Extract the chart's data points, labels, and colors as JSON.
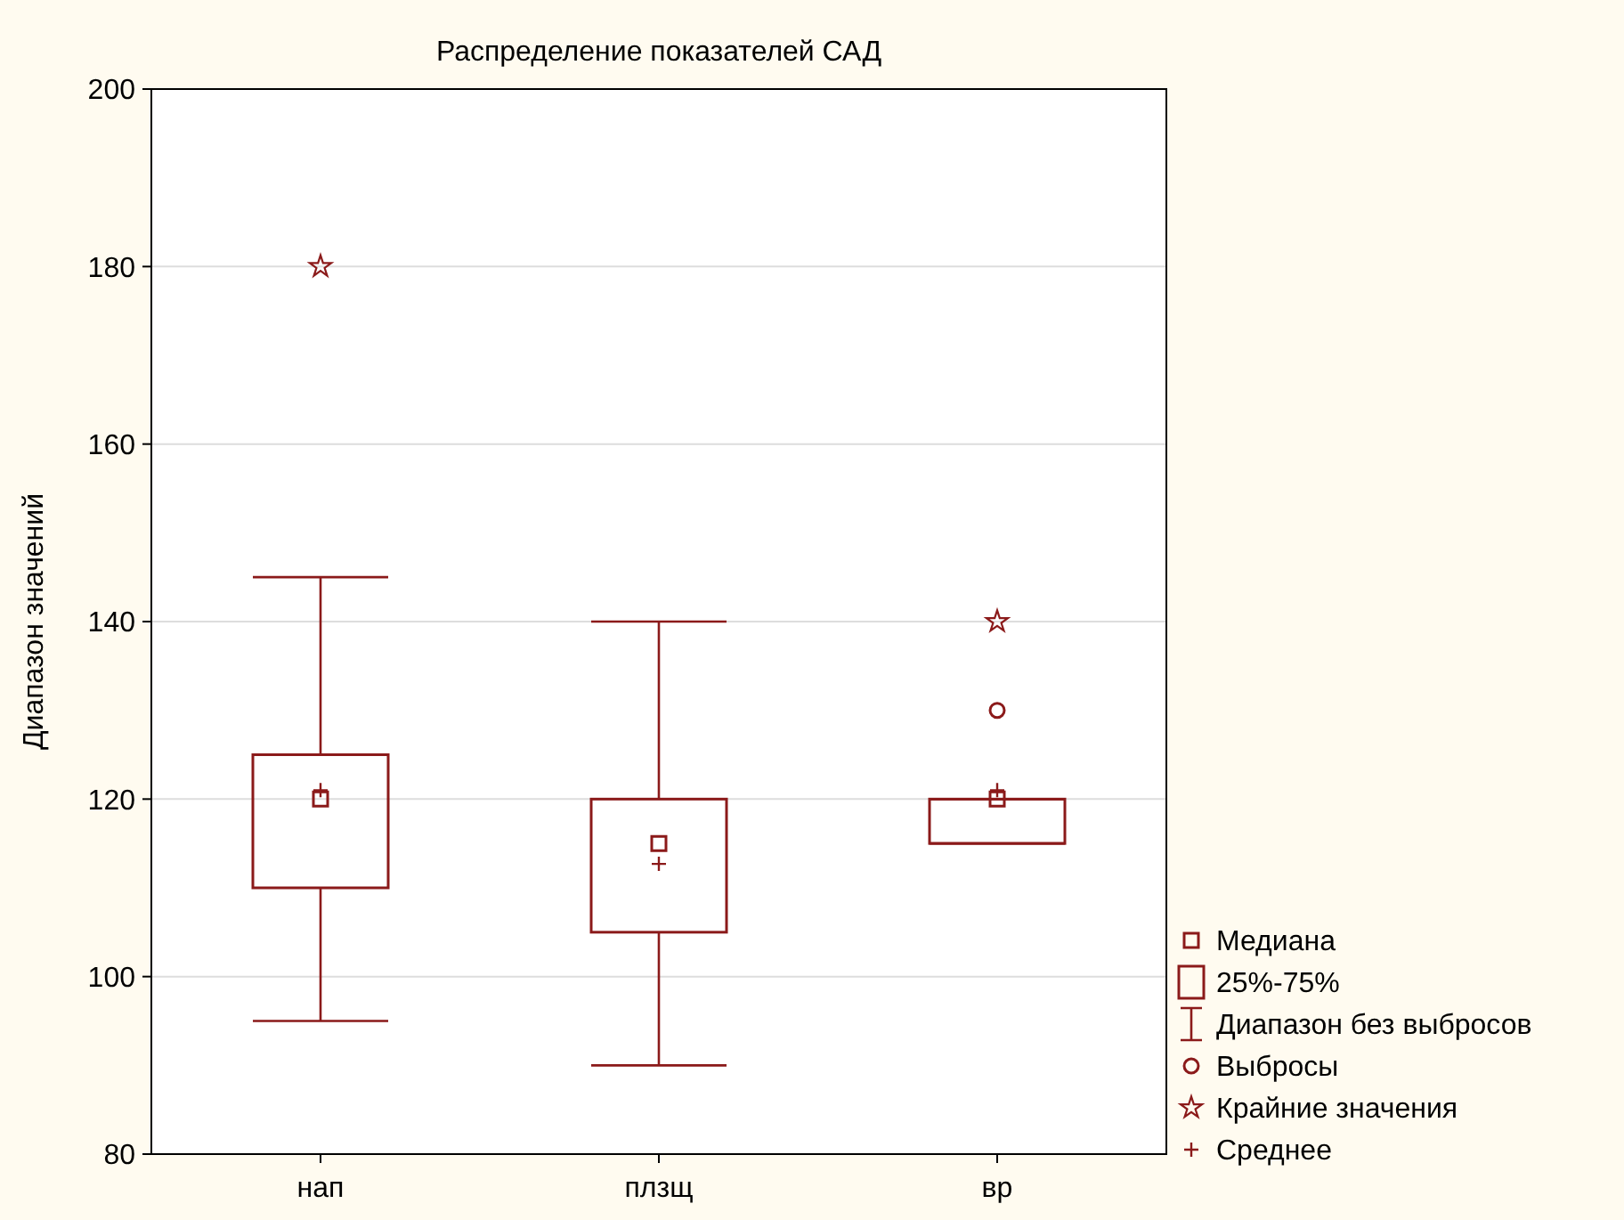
{
  "chart_data": {
    "type": "box",
    "title": "Распределение показателей САД",
    "ylabel": "Диапазон значений",
    "categories": [
      "нап",
      "плзщ",
      "вр"
    ],
    "ylim": [
      80,
      200
    ],
    "yticks": [
      80,
      100,
      120,
      140,
      160,
      180,
      200
    ],
    "grid": "y",
    "legend": "bottom right",
    "annotations": [
      "Медиана",
      "Диапазон без выбросов"
    ],
    "series": [
      {
        "name": "25%-75%",
        "color": "#8b1a1a",
        "boxes": [
          {
            "low": 95,
            "q1": 110,
            "median": 120,
            "q3": 125,
            "high": 145
          },
          {
            "low": 90,
            "q1": 105,
            "median": 115,
            "q3": 120,
            "high": 140
          },
          {
            "low": 115,
            "q1": 115,
            "median": 120,
            "q3": 120,
            "high": 120
          }
        ]
      },
      {
        "type": "scatter",
        "name": "Выбросы",
        "color": "#8b1a1a",
        "marker": "circle",
        "x": [
          "вр"
        ],
        "values": [
          130
        ]
      },
      {
        "type": "scatter",
        "name": "Крайние значения",
        "color": "#8b1a1a",
        "marker": "star",
        "x": [
          "нап",
          "вр"
        ],
        "values": [
          180,
          140
        ]
      },
      {
        "type": "scatter",
        "name": "Среднее",
        "color": "#8b1a1a",
        "marker": "cross",
        "x": [
          "нап",
          "плзщ",
          "вр"
        ],
        "values": [
          121,
          112.7,
          121
        ]
      }
    ]
  }
}
